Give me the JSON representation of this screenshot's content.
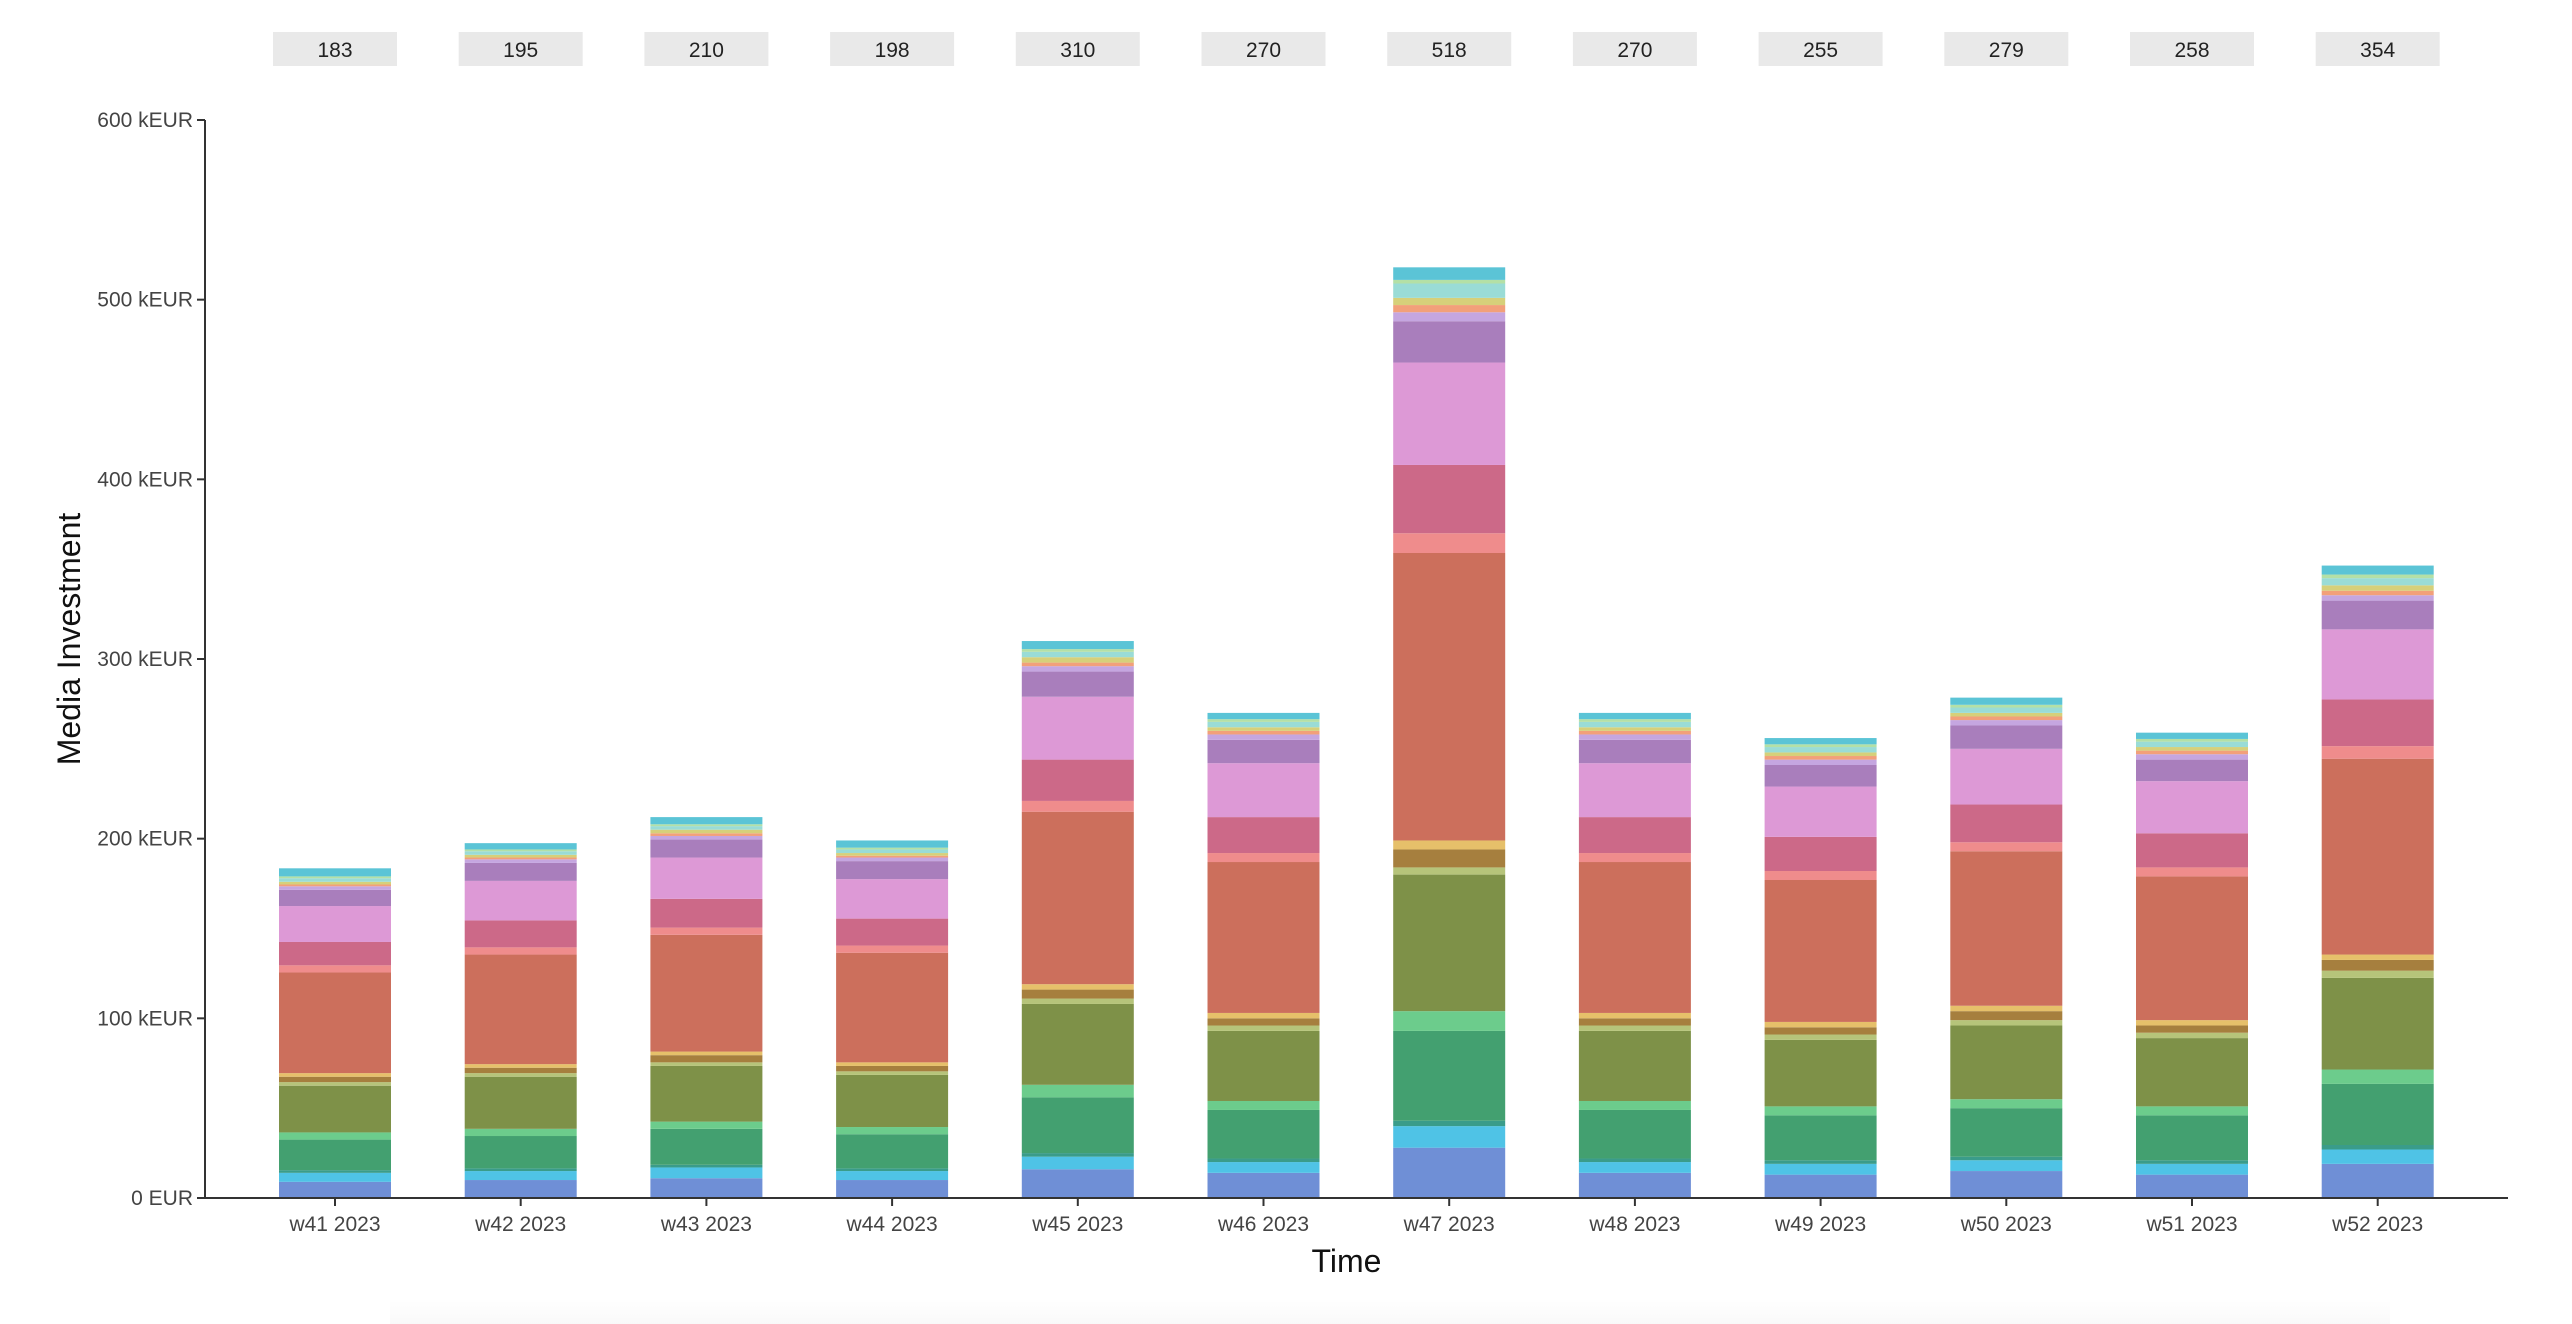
{
  "chart_data": {
    "type": "bar",
    "stacked": true,
    "xlabel": "Time",
    "ylabel": "Media Investment",
    "ylim": [
      0,
      600
    ],
    "y_ticks": [
      "0 EUR",
      "100 kEUR",
      "200 kEUR",
      "300 kEUR",
      "400 kEUR",
      "500 kEUR",
      "600 kEUR"
    ],
    "categories": [
      "w41 2023",
      "w42 2023",
      "w43 2023",
      "w44 2023",
      "w45 2023",
      "w46 2023",
      "w47 2023",
      "w48 2023",
      "w49 2023",
      "w50 2023",
      "w51 2023",
      "w52 2023"
    ],
    "totals": [
      "183",
      "195",
      "210",
      "198",
      "310",
      "270",
      "518",
      "270",
      "255",
      "279",
      "258",
      "354"
    ],
    "grid": false,
    "legend": "none",
    "series": [
      {
        "color": "#6f8fd6",
        "values": [
          9,
          10,
          11,
          10,
          16,
          14,
          28,
          14,
          13,
          15,
          13,
          19
        ]
      },
      {
        "color": "#4fc3e6",
        "values": [
          5,
          5,
          6,
          5,
          7,
          6,
          12,
          6,
          6,
          6,
          6,
          8
        ]
      },
      {
        "color": "#3a9c8a",
        "values": [
          1.5,
          1.5,
          1.5,
          1.5,
          2,
          2,
          3,
          2,
          2,
          2,
          2,
          2.5
        ]
      },
      {
        "color": "#43a070",
        "values": [
          17,
          18,
          20,
          19,
          31,
          27,
          50,
          27,
          25,
          27,
          25,
          34
        ]
      },
      {
        "color": "#6ccc8c",
        "values": [
          4,
          4,
          4,
          4,
          7,
          5,
          11,
          5,
          5,
          5,
          5,
          8
        ]
      },
      {
        "color": "#7e9148",
        "values": [
          26,
          29,
          31,
          29,
          45,
          39,
          76,
          39,
          37,
          41,
          38,
          51
        ]
      },
      {
        "color": "#b6c47a",
        "values": [
          2,
          2,
          2,
          2,
          3,
          3,
          4,
          3,
          3,
          3,
          3,
          4
        ]
      },
      {
        "color": "#a67f3e",
        "values": [
          3,
          3,
          4,
          3,
          5,
          4,
          10,
          4,
          4,
          5,
          4,
          6
        ]
      },
      {
        "color": "#e6c06a",
        "values": [
          2,
          2,
          2,
          2,
          3,
          3,
          5,
          3,
          3,
          3,
          3,
          3
        ]
      },
      {
        "color": "#cc6f5c",
        "values": [
          56,
          61,
          65,
          61,
          96,
          84,
          160,
          84,
          79,
          86,
          80,
          109
        ]
      },
      {
        "color": "#ef8c8c",
        "values": [
          4,
          4,
          4,
          4,
          6,
          5,
          11,
          5,
          5,
          5,
          5,
          7
        ]
      },
      {
        "color": "#cc6988",
        "values": [
          13,
          15,
          16,
          15,
          23,
          20,
          38,
          20,
          19,
          21,
          19,
          26
        ]
      },
      {
        "color": "#dd99d6",
        "values": [
          20,
          22,
          23,
          22,
          35,
          30,
          57,
          30,
          28,
          31,
          29,
          39
        ]
      },
      {
        "color": "#a97ebc",
        "values": [
          9,
          10,
          10,
          10,
          14,
          13,
          23,
          13,
          12,
          13,
          12,
          16
        ]
      },
      {
        "color": "#c5a6e0",
        "values": [
          2,
          2,
          2,
          2,
          3,
          3,
          5,
          3,
          3,
          3,
          3,
          3
        ]
      },
      {
        "color": "#f2a07a",
        "values": [
          1,
          1,
          1.5,
          1,
          2,
          2,
          4,
          2,
          2,
          2,
          2,
          2.5
        ]
      },
      {
        "color": "#d6d07a",
        "values": [
          1.5,
          1.5,
          2,
          1.5,
          3,
          2,
          4,
          2,
          2,
          2,
          2,
          3
        ]
      },
      {
        "color": "#9adcd6",
        "values": [
          2,
          2,
          2,
          2,
          3,
          3,
          8,
          3,
          3,
          3,
          3,
          4
        ]
      },
      {
        "color": "#b4e0a6",
        "values": [
          1,
          1,
          1,
          1,
          1.5,
          1.5,
          2,
          1.5,
          1.5,
          1.5,
          1.5,
          2
        ]
      },
      {
        "color": "#5bc4d6",
        "values": [
          4.5,
          3.5,
          4,
          4,
          4.5,
          3.5,
          7,
          3.5,
          3.5,
          4,
          3.5,
          5
        ]
      }
    ]
  }
}
